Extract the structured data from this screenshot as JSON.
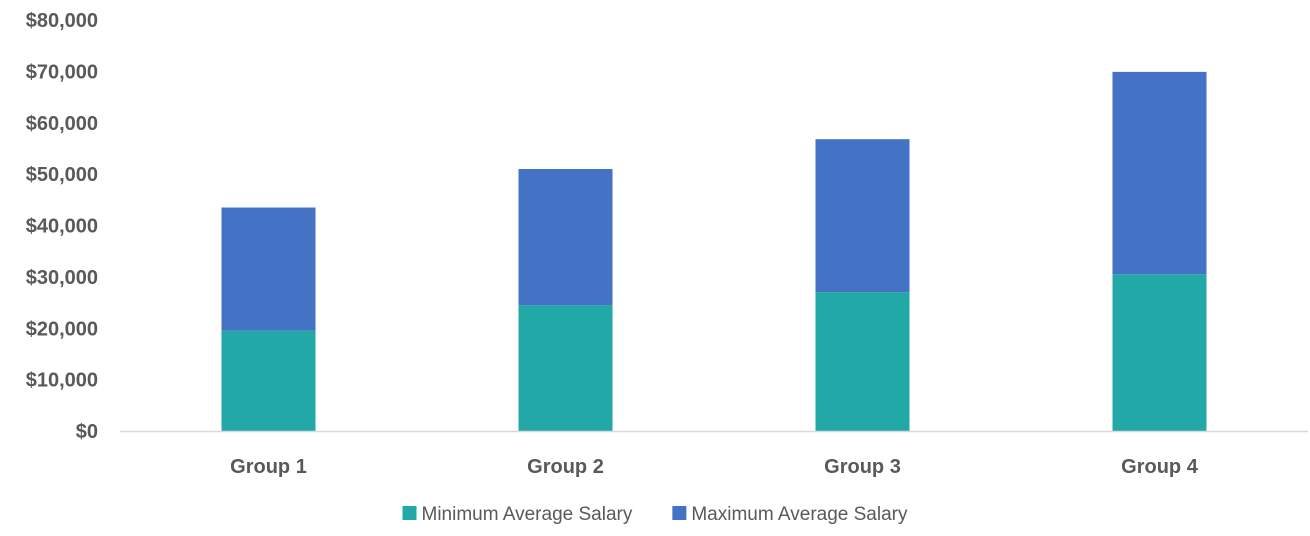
{
  "chart_data": {
    "type": "bar",
    "stacked": true,
    "categories": [
      "Group 1",
      "Group 2",
      "Group 3",
      "Group 4"
    ],
    "series": [
      {
        "name": "Minimum Average Salary",
        "values": [
          19500,
          24500,
          27000,
          30500
        ],
        "color": "#23A8A8"
      },
      {
        "name": "Maximum Average Salary",
        "values": [
          24000,
          26500,
          29800,
          39400
        ],
        "color": "#4472C4"
      }
    ],
    "ylim": [
      0,
      80000
    ],
    "yticks": [
      0,
      10000,
      20000,
      30000,
      40000,
      50000,
      60000,
      70000,
      80000
    ],
    "ytick_labels": [
      "$0",
      "$10,000",
      "$20,000",
      "$30,000",
      "$40,000",
      "$50,000",
      "$60,000",
      "$70,000",
      "$80,000"
    ],
    "grid": false,
    "legend": "bottom",
    "axis_color": "#D9D9D9"
  }
}
